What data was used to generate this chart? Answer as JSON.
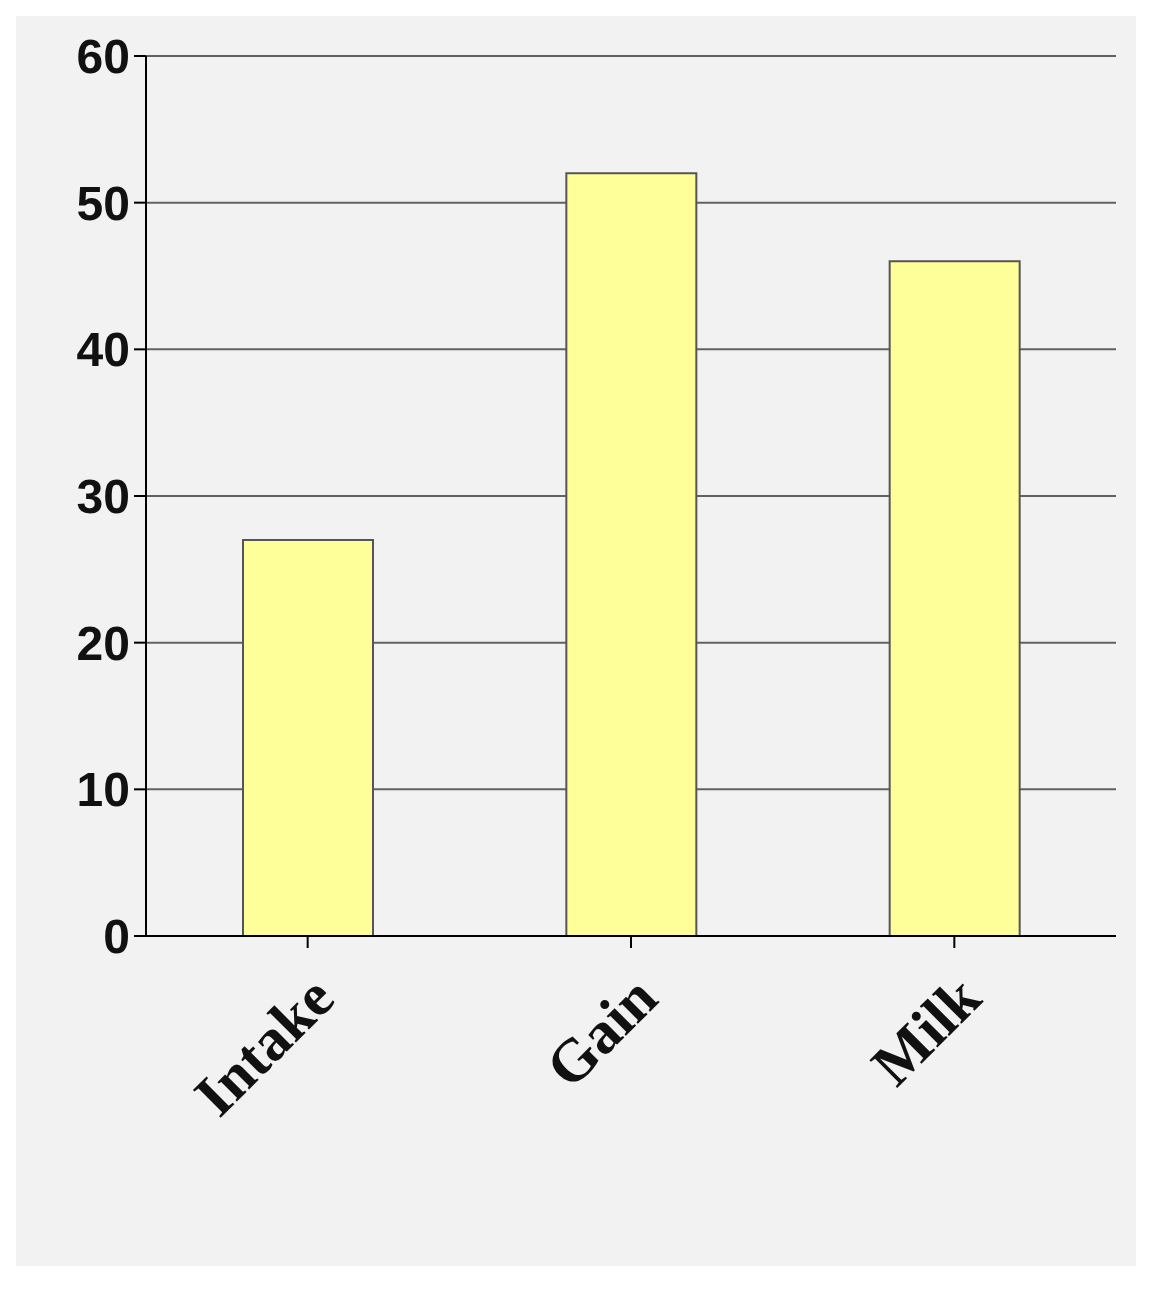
{
  "chart_data": {
    "type": "bar",
    "categories": [
      "Intake",
      "Gain",
      "Milk"
    ],
    "values": [
      27,
      52,
      46
    ],
    "color": "#ffff99",
    "ylim": [
      0,
      60
    ],
    "yticks": [
      0,
      10,
      20,
      30,
      40,
      50,
      60
    ],
    "grid": "y"
  }
}
